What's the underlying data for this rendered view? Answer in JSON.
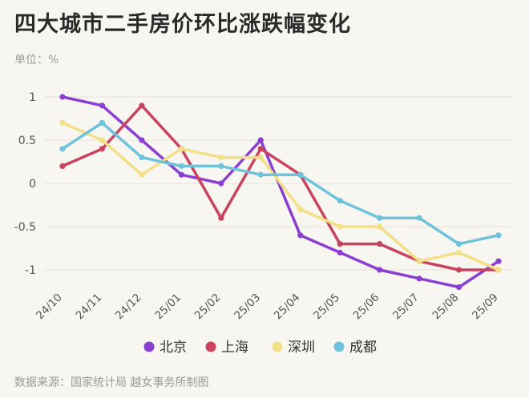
{
  "title": "四大城市二手房价环比涨跌幅变化",
  "unit_label": "单位：%",
  "source": "数据来源：国家统计局 越女事务所制图",
  "chart_data": {
    "type": "line",
    "x": [
      "24/10",
      "24/11",
      "24/12",
      "25/01",
      "25/02",
      "25/03",
      "25/04",
      "25/05",
      "25/06",
      "25/07",
      "25/08",
      "25/09"
    ],
    "ylim": [
      -1.2,
      1.1
    ],
    "yticks": [
      1,
      0.5,
      0,
      -0.5,
      -1
    ],
    "ytick_labels": [
      "1",
      "0.5",
      "0",
      "-0.5",
      "-1"
    ],
    "grid": true,
    "legend_position": "bottom",
    "series": [
      {
        "name": "北京",
        "color": "#8a3fd0",
        "values": [
          1.0,
          0.9,
          0.5,
          0.1,
          0.0,
          0.5,
          -0.6,
          -0.8,
          -1.0,
          -1.1,
          -1.2,
          -0.9
        ]
      },
      {
        "name": "上海",
        "color": "#c9435f",
        "values": [
          0.2,
          0.4,
          0.9,
          0.4,
          -0.4,
          0.4,
          0.1,
          -0.7,
          -0.7,
          -0.9,
          -1.0,
          -1.0
        ]
      },
      {
        "name": "深圳",
        "color": "#f2df86",
        "values": [
          0.7,
          0.5,
          0.1,
          0.4,
          0.3,
          0.3,
          -0.3,
          -0.5,
          -0.5,
          -0.9,
          -0.8,
          -1.0
        ]
      },
      {
        "name": "成都",
        "color": "#6ec3db",
        "values": [
          0.4,
          0.7,
          0.3,
          0.2,
          0.2,
          0.1,
          0.1,
          -0.2,
          -0.4,
          -0.4,
          -0.7,
          -0.6
        ]
      }
    ]
  }
}
